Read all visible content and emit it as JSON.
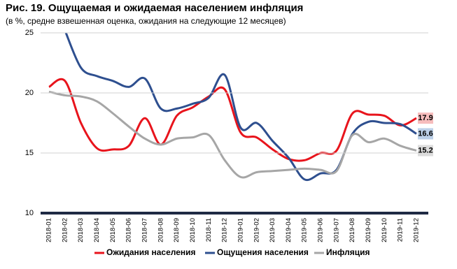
{
  "chart_data": {
    "type": "line",
    "title": "Рис. 19. Ощущаемая и ожидаемая населением инфляция",
    "subtitle": "(в %, средне взвешенная оценка, ожидания на следующие 12 месяцев)",
    "categories": [
      "2018-01",
      "2018-02",
      "2018-03",
      "2018-04",
      "2018-05",
      "2018-06",
      "2018-07",
      "2018-08",
      "2018-09",
      "2018-10",
      "2018-11",
      "2018-12",
      "2019-01",
      "2019-02",
      "2019-03",
      "2019-04",
      "2019-05",
      "2019-06",
      "2019-07",
      "2019-08",
      "2019-09",
      "2019-10",
      "2019-11",
      "2019-12"
    ],
    "series": [
      {
        "name": "Ожидания населения",
        "color": "#e8141c",
        "label_color": "#f6bcbc",
        "values": [
          20.5,
          21.0,
          17.5,
          15.4,
          15.3,
          15.6,
          17.9,
          15.7,
          18.1,
          18.8,
          19.7,
          20.3,
          16.7,
          16.3,
          15.3,
          14.5,
          14.4,
          15.0,
          15.2,
          18.3,
          18.2,
          18.1,
          17.3,
          17.9
        ]
      },
      {
        "name": "Ощущения населения",
        "color": "#2e4f8f",
        "label_color": "#bcd0e8",
        "values": [
          null,
          25.2,
          22.1,
          21.4,
          21.0,
          20.5,
          21.2,
          18.7,
          18.7,
          19.1,
          19.6,
          21.5,
          17.1,
          17.5,
          16.0,
          14.6,
          12.8,
          13.3,
          13.6,
          16.6,
          17.6,
          17.5,
          17.4,
          16.6
        ]
      },
      {
        "name": "Инфляция",
        "color": "#a6a6a6",
        "label_color": "#dcdcdc",
        "values": [
          20.1,
          19.8,
          19.7,
          19.3,
          18.3,
          17.2,
          16.2,
          15.7,
          16.2,
          16.3,
          16.5,
          14.4,
          13.0,
          13.4,
          13.5,
          13.6,
          13.7,
          13.6,
          13.5,
          16.5,
          15.9,
          16.2,
          15.6,
          15.2
        ]
      }
    ],
    "ylim": [
      10,
      25
    ],
    "yticks": [
      10,
      15,
      20,
      25
    ],
    "grid": true
  }
}
